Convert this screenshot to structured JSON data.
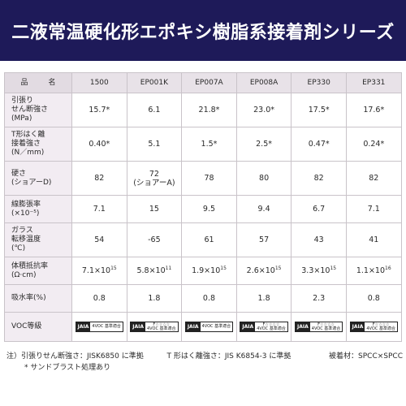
{
  "title": "二液常温硬化形エポキシ樹脂系接着剤シリーズ",
  "table": {
    "row_header_label": "品　名",
    "products": [
      "1500",
      "EP001K",
      "EP007A",
      "EP008A",
      "EP330",
      "EP331"
    ],
    "rows": [
      {
        "label_lines": [
          "引張り",
          "せん断強さ",
          "(MPa)"
        ],
        "values": [
          "15.7*",
          "6.1",
          "21.8*",
          "23.0*",
          "17.5*",
          "17.6*"
        ]
      },
      {
        "label_lines": [
          "T形はく離",
          "接着強さ",
          "(N／mm)"
        ],
        "values": [
          "0.40*",
          "5.1",
          "1.5*",
          "2.5*",
          "0.47*",
          "0.24*"
        ]
      },
      {
        "label_lines": [
          "硬さ",
          "(ショアーD)"
        ],
        "values": [
          "82",
          "72\n(ショアーA)",
          "78",
          "80",
          "82",
          "82"
        ]
      },
      {
        "label_lines": [
          "線膨張率",
          "(×10⁻⁵)"
        ],
        "values": [
          "7.1",
          "15",
          "9.5",
          "9.4",
          "6.7",
          "7.1"
        ]
      },
      {
        "label_lines": [
          "ガラス",
          "転移温度",
          "(℃)"
        ],
        "values": [
          "54",
          "-65",
          "61",
          "57",
          "43",
          "41"
        ]
      },
      {
        "label_lines": [
          "体積抵抗率",
          "(Ω·cm)"
        ],
        "values": [
          {
            "base": "7.1×10",
            "exp": "15"
          },
          {
            "base": "5.8×10",
            "exp": "11"
          },
          {
            "base": "1.9×10",
            "exp": "15"
          },
          {
            "base": "2.6×10",
            "exp": "15"
          },
          {
            "base": "3.3×10",
            "exp": "15"
          },
          {
            "base": "1.1×10",
            "exp": "16"
          }
        ]
      },
      {
        "label_lines": [
          "吸水率(%)"
        ],
        "values": [
          "0.8",
          "1.8",
          "0.8",
          "1.8",
          "2.3",
          "0.8"
        ]
      },
      {
        "label_lines": [
          "VOC等級"
        ],
        "badges": [
          {
            "mark": "JAIA",
            "text": [
              "4VOC 基準適合"
            ]
          },
          {
            "mark": "JAIA",
            "text": [
              "F☆☆☆☆",
              "4VOC 基準適合"
            ]
          },
          {
            "mark": "JAIA",
            "text": [
              "4VOC 基準適合"
            ]
          },
          {
            "mark": "JAIA",
            "text": [
              "F☆☆☆☆",
              "4VOC 基準適合"
            ]
          },
          {
            "mark": "JAIA",
            "text": [
              "F☆☆☆☆",
              "4VOC 基準適合"
            ]
          },
          {
            "mark": "JAIA",
            "text": [
              "F☆☆☆☆",
              "4VOC 基準適合"
            ]
          }
        ]
      }
    ]
  },
  "notes": {
    "note1": "注）引張りせん断強さ：JISK6850 に準拠",
    "note2": "T 形はく離強さ：JIS  K6854-3 に準拠",
    "note3": "被着材：SPCC×SPCC",
    "note4": "* サンドブラスト処理あり"
  },
  "colors": {
    "title_bg": "#1e1a59",
    "header_bg": "#e8e2e8",
    "label_bg": "#f2ecf2",
    "border": "#c9c3c9"
  }
}
